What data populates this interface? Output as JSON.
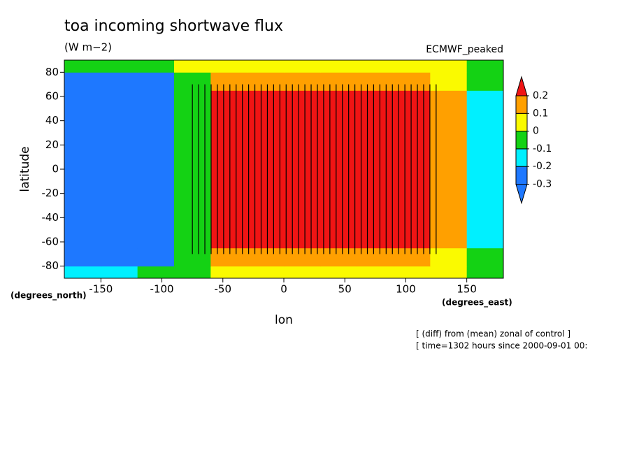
{
  "chart_data": {
    "type": "contour",
    "title": "toa incoming shortwave flux",
    "subtitle": "(W m−2)",
    "label_right": "ECMWF_peaked",
    "xlabel": "lon",
    "ylabel": "latitude",
    "xunits": "(degrees_east)",
    "yunits": "(degrees_north)",
    "notes": [
      "[ (diff) from (mean) zonal of control ]",
      "[ time=1302 hours since 2000-09-01 00:"
    ],
    "xlim": [
      -180,
      180
    ],
    "ylim": [
      -90,
      90
    ],
    "xticks": [
      -150,
      -100,
      -50,
      0,
      50,
      100,
      150
    ],
    "yticks": [
      -80,
      -60,
      -40,
      -20,
      0,
      20,
      40,
      60,
      80
    ],
    "xbins": [
      -180,
      -150,
      -120,
      -90,
      -60,
      -30,
      0,
      30,
      60,
      90,
      120,
      150,
      180
    ],
    "ybins": [
      -90,
      -80,
      -65,
      65,
      80,
      90
    ],
    "z": [
      [
        -0.15,
        -0.15,
        -0.05,
        -0.05,
        0.05,
        0.05,
        0.05,
        0.05,
        0.05,
        0.05,
        0.05,
        -0.05
      ],
      [
        -0.25,
        -0.25,
        -0.25,
        -0.05,
        0.15,
        0.15,
        0.15,
        0.15,
        0.15,
        0.15,
        0.05,
        -0.05
      ],
      [
        -0.35,
        -0.35,
        -0.35,
        -0.05,
        0.25,
        0.25,
        0.25,
        0.25,
        0.25,
        0.25,
        0.15,
        -0.15
      ],
      [
        -0.25,
        -0.25,
        -0.25,
        -0.05,
        0.15,
        0.15,
        0.15,
        0.15,
        0.15,
        0.15,
        0.05,
        -0.05
      ],
      [
        -0.05,
        -0.05,
        -0.05,
        0.05,
        0.05,
        0.05,
        0.05,
        0.05,
        0.05,
        0.05,
        0.05,
        -0.05
      ]
    ],
    "levels": [
      -0.3,
      -0.2,
      -0.1,
      0,
      0.1,
      0.2
    ],
    "colors": [
      "#1e78ff",
      "#1e78ff",
      "#00f0ff",
      "#14d214",
      "#fafa00",
      "#ffa000",
      "#f01414"
    ]
  }
}
